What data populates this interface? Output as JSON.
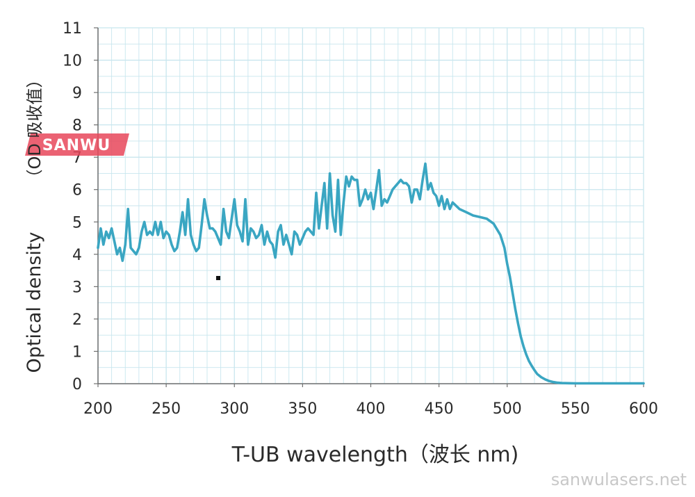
{
  "chart_data": {
    "type": "line",
    "xlabel": "T-UB wavelength（波长 nm)",
    "ylabel": "Optical density",
    "ylabel_secondary": "（OD 吸收值）",
    "xlim": [
      200,
      600
    ],
    "ylim": [
      0,
      11
    ],
    "x_ticks": [
      "200",
      "250",
      "300",
      "350",
      "400",
      "450",
      "500",
      "550",
      "600"
    ],
    "y_ticks": [
      "0",
      "1",
      "2",
      "3",
      "4",
      "5",
      "6",
      "7",
      "8",
      "9",
      "10",
      "11"
    ],
    "grid": true,
    "line_color": "#3aa6c2",
    "grid_color": "#c8e6ee",
    "series": [
      {
        "x": [
          200,
          202,
          204,
          206,
          208,
          210,
          212,
          214,
          216,
          218,
          220,
          222,
          224,
          226,
          228,
          230,
          232,
          234,
          236,
          238,
          240,
          242,
          244,
          246,
          248,
          250,
          252,
          254,
          256,
          258,
          260,
          262,
          264,
          266,
          268,
          270,
          272,
          274,
          276,
          278,
          280,
          282,
          284,
          286,
          288,
          290,
          292,
          294,
          296,
          298,
          300,
          302,
          304,
          306,
          308,
          310,
          312,
          314,
          316,
          318,
          320,
          322,
          324,
          326,
          328,
          330,
          332,
          334,
          336,
          338,
          340,
          342,
          344,
          346,
          348,
          350,
          352,
          354,
          356,
          358,
          360,
          362,
          364,
          366,
          368,
          370,
          372,
          374,
          376,
          378,
          380,
          382,
          384,
          386,
          388,
          390,
          392,
          394,
          396,
          398,
          400,
          402,
          404,
          406,
          408,
          410,
          412,
          414,
          416,
          418,
          420,
          422,
          424,
          426,
          428,
          430,
          432,
          434,
          436,
          438,
          440,
          442,
          444,
          446,
          448,
          450,
          452,
          454,
          456,
          458,
          460,
          465,
          470,
          475,
          480,
          485,
          490,
          495,
          498,
          500,
          502,
          504,
          506,
          508,
          510,
          512,
          514,
          516,
          518,
          520,
          522,
          525,
          528,
          531,
          534,
          537,
          540,
          545,
          550,
          560,
          570,
          580,
          590,
          600
        ],
        "y": [
          4.2,
          4.8,
          4.3,
          4.7,
          4.5,
          4.8,
          4.4,
          4.0,
          4.2,
          3.8,
          4.3,
          5.4,
          4.2,
          4.1,
          4.0,
          4.2,
          4.7,
          5.0,
          4.6,
          4.7,
          4.6,
          5.0,
          4.6,
          5.0,
          4.5,
          4.7,
          4.6,
          4.3,
          4.1,
          4.2,
          4.7,
          5.3,
          4.6,
          5.7,
          4.6,
          4.3,
          4.1,
          4.2,
          4.9,
          5.7,
          5.2,
          4.8,
          4.8,
          4.7,
          4.5,
          4.3,
          5.4,
          4.7,
          4.5,
          5.1,
          5.7,
          4.9,
          4.7,
          4.4,
          5.7,
          4.3,
          4.8,
          4.7,
          4.5,
          4.6,
          4.9,
          4.3,
          4.7,
          4.4,
          4.3,
          3.9,
          4.7,
          4.9,
          4.3,
          4.6,
          4.3,
          4.0,
          4.7,
          4.6,
          4.3,
          4.5,
          4.7,
          4.8,
          4.7,
          4.6,
          5.9,
          4.8,
          5.5,
          6.2,
          4.8,
          6.5,
          5.2,
          4.7,
          6.3,
          4.6,
          5.6,
          6.4,
          6.1,
          6.4,
          6.3,
          6.3,
          5.5,
          5.7,
          6.0,
          5.7,
          5.9,
          5.4,
          6.0,
          6.6,
          5.5,
          5.7,
          5.6,
          5.8,
          6.0,
          6.1,
          6.2,
          6.3,
          6.2,
          6.2,
          6.1,
          5.6,
          6.0,
          6.0,
          5.7,
          6.3,
          6.8,
          6.0,
          6.2,
          5.9,
          5.8,
          5.5,
          5.8,
          5.4,
          5.7,
          5.4,
          5.6,
          5.4,
          5.3,
          5.2,
          5.15,
          5.1,
          4.95,
          4.6,
          4.2,
          3.7,
          3.3,
          2.8,
          2.3,
          1.85,
          1.45,
          1.15,
          0.9,
          0.7,
          0.55,
          0.42,
          0.3,
          0.2,
          0.13,
          0.08,
          0.05,
          0.03,
          0.02,
          0.015,
          0.01,
          0.01,
          0.01,
          0.01,
          0.01,
          0.01
        ]
      }
    ]
  },
  "watermark": {
    "text": "SANWU",
    "color": "#e8475a"
  },
  "site": {
    "text": "sanwulasers.net"
  }
}
